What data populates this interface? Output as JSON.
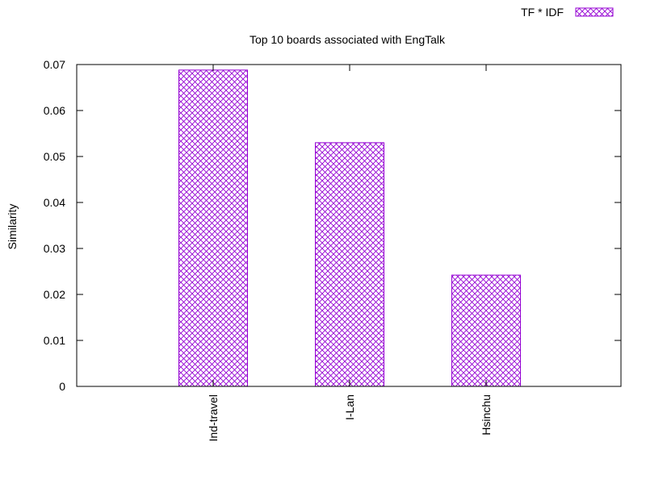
{
  "chart_data": {
    "type": "bar",
    "title": "Top 10 boards associated with EngTalk",
    "xlabel": "",
    "ylabel": "Similarity",
    "categories": [
      "Ind-travel",
      "I-Lan",
      "Hsinchu"
    ],
    "series": [
      {
        "name": "TF * IDF",
        "values": [
          0.0688,
          0.053,
          0.0242
        ]
      }
    ],
    "ylim": [
      0,
      0.07
    ],
    "yticks": [
      "0",
      "0.01",
      "0.02",
      "0.03",
      "0.04",
      "0.05",
      "0.06",
      "0.07"
    ],
    "grid": false,
    "legend_position": "top-right",
    "bar_fill": "crosshatch",
    "colors": {
      "bar": "#9400d3",
      "axis": "#000000"
    }
  }
}
